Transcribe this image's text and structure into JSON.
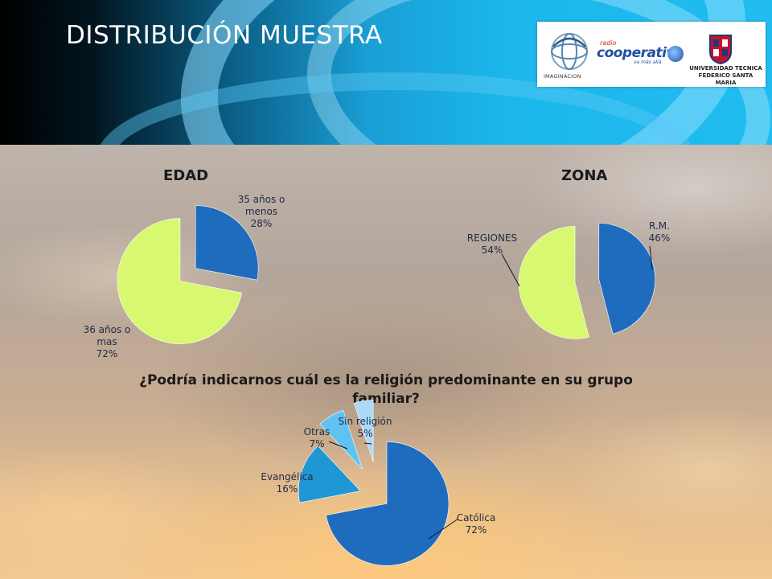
{
  "header": {
    "title": "DISTRIBUCIÓN MUESTRA",
    "logos": {
      "imaginacion": "IMAGINACION",
      "radio": "radio",
      "cooperativa": "cooperativa",
      "tagline": "va más allá",
      "usm_line1": "UNIVERSIDAD TECNICA",
      "usm_line2": "FEDERICO SANTA MARIA"
    }
  },
  "colors": {
    "dark_blue": "#1f6cbf",
    "lime": "#d8f872",
    "mid_blue": "#1f97d4",
    "light_blue": "#5fc3f1",
    "pale_blue": "#a9dbf9"
  },
  "chart_data": [
    {
      "type": "pie",
      "title": "EDAD",
      "slices": [
        {
          "label_lines": [
            "35 años o",
            "menos"
          ],
          "pct_label": "28%",
          "value": 28
        },
        {
          "label_lines": [
            "36 años o",
            "mas"
          ],
          "pct_label": "72%",
          "value": 72
        }
      ]
    },
    {
      "type": "pie",
      "title": "ZONA",
      "slices": [
        {
          "label_lines": [
            "R.M."
          ],
          "pct_label": "46%",
          "value": 46
        },
        {
          "label_lines": [
            "REGIONES"
          ],
          "pct_label": "54%",
          "value": 54
        }
      ]
    },
    {
      "type": "pie",
      "title": "¿Podría indicarnos cuál es la religión predominante en su grupo familiar?",
      "slices": [
        {
          "label_lines": [
            "Católica"
          ],
          "pct_label": "72%",
          "value": 72
        },
        {
          "label_lines": [
            "Evangélica"
          ],
          "pct_label": "16%",
          "value": 16
        },
        {
          "label_lines": [
            "Otras"
          ],
          "pct_label": "7%",
          "value": 7
        },
        {
          "label_lines": [
            "Sin religión"
          ],
          "pct_label": "5%",
          "value": 5
        }
      ]
    }
  ]
}
